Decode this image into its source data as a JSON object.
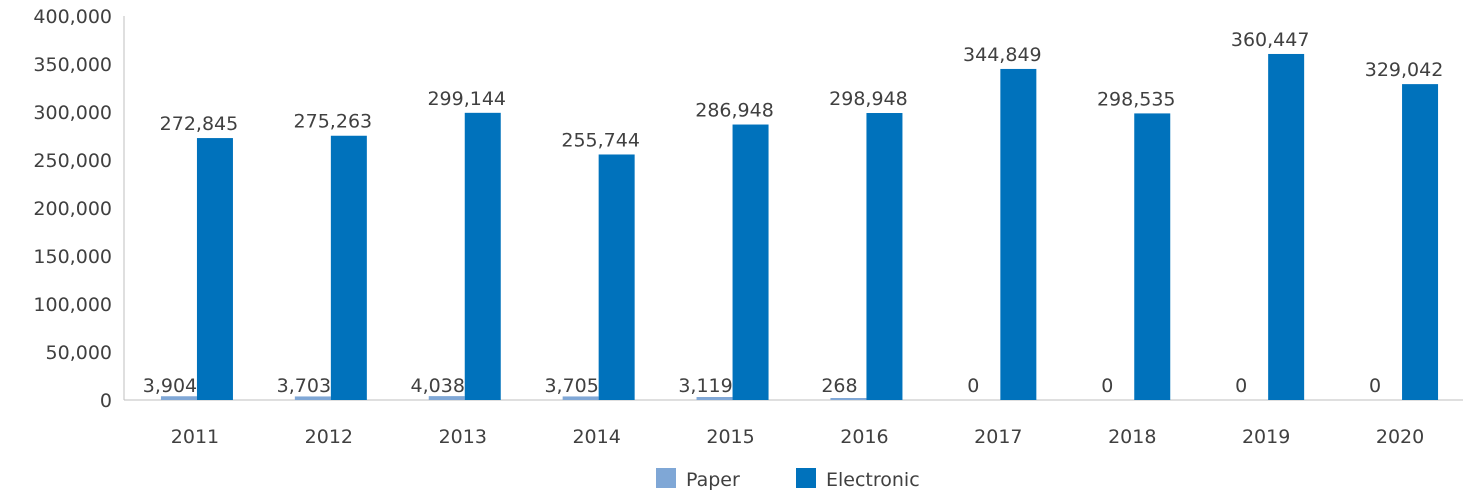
{
  "chart_data": {
    "type": "bar",
    "categories": [
      "2011",
      "2012",
      "2013",
      "2014",
      "2015",
      "2016",
      "2017",
      "2018",
      "2019",
      "2020"
    ],
    "series": [
      {
        "name": "Paper",
        "values": [
          3904,
          3703,
          4038,
          3705,
          3119,
          268,
          0,
          0,
          0,
          0
        ],
        "labels": [
          "3,904",
          "3,703",
          "4,038",
          "3,705",
          "3,119",
          "268",
          "0",
          "0",
          "0",
          "0"
        ],
        "color": "#7fa7d6"
      },
      {
        "name": "Electronic",
        "values": [
          272845,
          275263,
          299144,
          255744,
          286948,
          298948,
          344849,
          298535,
          360447,
          329042
        ],
        "labels": [
          "272,845",
          "275,263",
          "299,144",
          "255,744",
          "286,948",
          "298,948",
          "344,849",
          "298,535",
          "360,447",
          "329,042"
        ],
        "color": "#0072bc"
      }
    ],
    "ylim": [
      0,
      400000
    ],
    "yticks": [
      "0",
      "50,000",
      "100,000",
      "150,000",
      "200,000",
      "250,000",
      "300,000",
      "350,000",
      "400,000"
    ],
    "grid": false,
    "legend_position": "bottom-center"
  }
}
